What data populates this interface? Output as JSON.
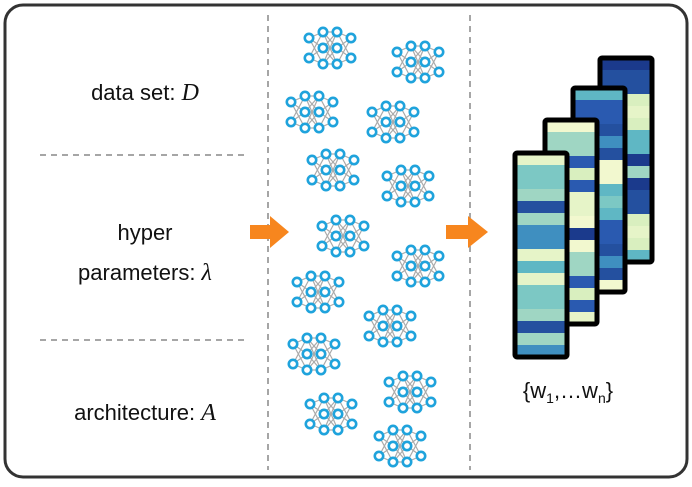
{
  "inputs": [
    {
      "lines": [
        {
          "text": "data set: ",
          "symbol": "D"
        }
      ]
    },
    {
      "lines": [
        {
          "text": "hyper"
        },
        {
          "text": "parameters: ",
          "symbol": "λ"
        }
      ]
    },
    {
      "lines": [
        {
          "text": "architecture: ",
          "symbol": "A"
        }
      ]
    }
  ],
  "output": {
    "open": "{w",
    "sub1": "1",
    "mid": ",…w",
    "sub2": "n",
    "close": "}"
  }
}
